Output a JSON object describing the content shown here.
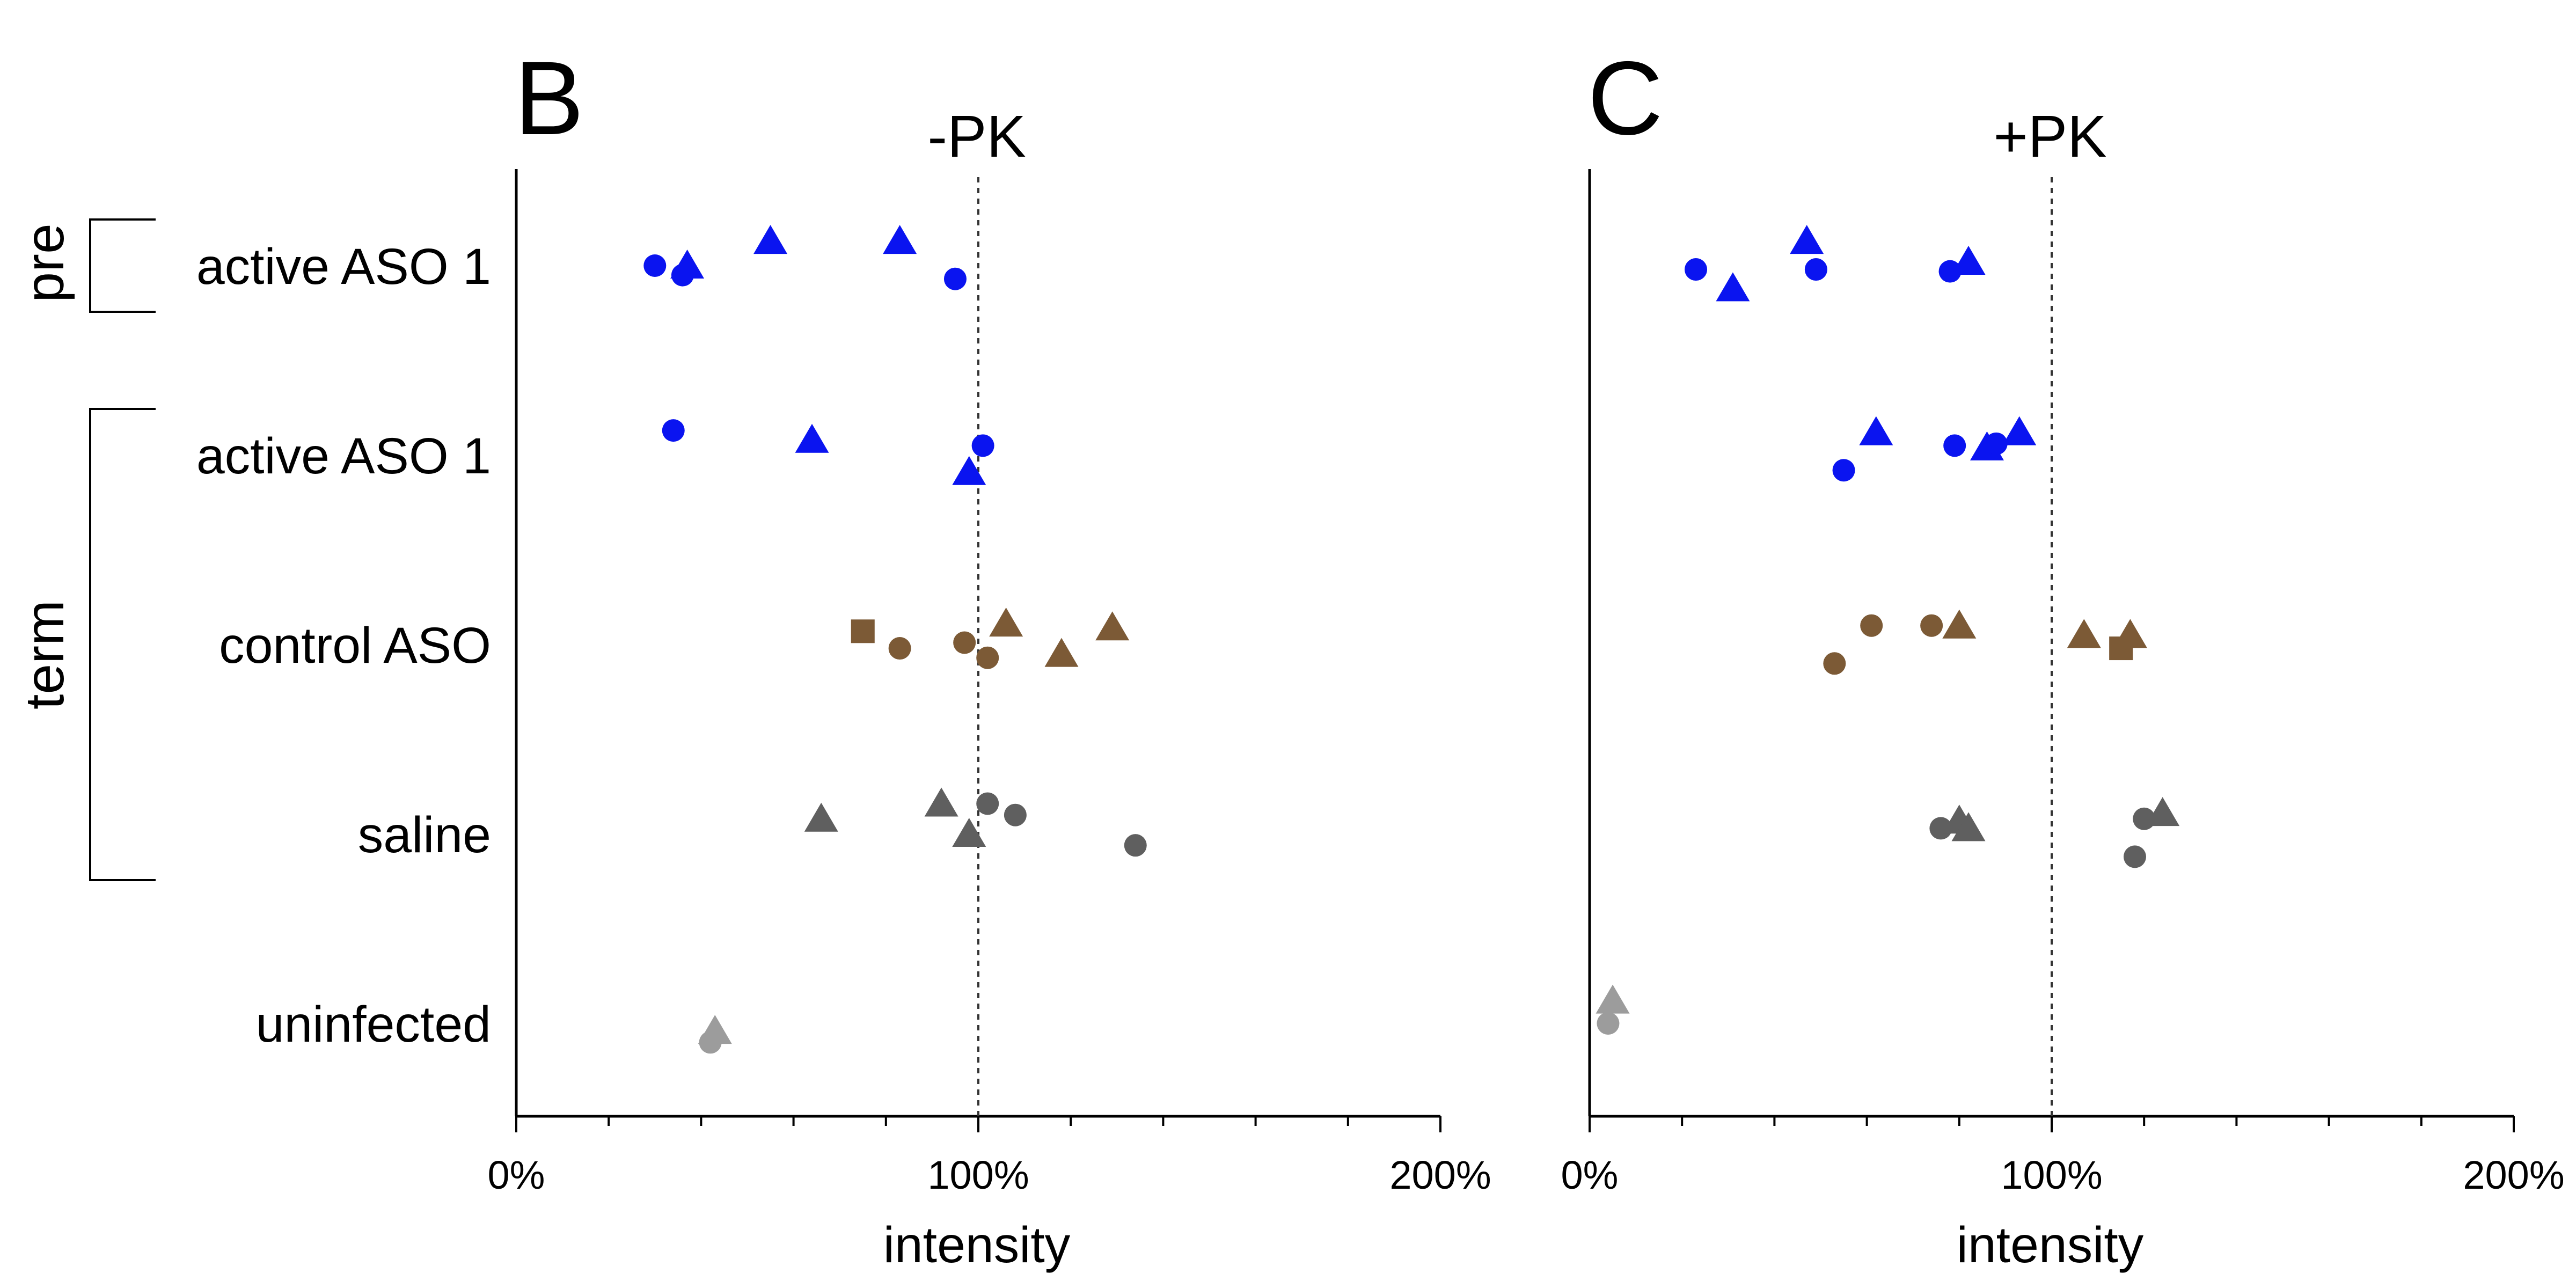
{
  "groups": [
    {
      "label": "pre",
      "from": 0,
      "to": 0
    },
    {
      "label": "term",
      "from": 1,
      "to": 3
    }
  ],
  "categories": [
    "active ASO 1",
    "active ASO 1",
    "control ASO",
    "saline",
    "uninfected"
  ],
  "colors": {
    "active": "#0a14f0",
    "control": "#7c5a36",
    "saline": "#5f5f5f",
    "uninfected": "#9c9c9c",
    "reference_line": "#333333"
  },
  "chart_data": [
    {
      "type": "scatter",
      "panel": "B",
      "title": "-PK",
      "xlabel": "intensity",
      "xlim": [
        0,
        200
      ],
      "x_tick_labels": [
        "0%",
        "100%",
        "200%"
      ],
      "x_ticks": [
        0,
        100,
        200
      ],
      "minor_tick_step": 20,
      "reference_x": 100,
      "points": [
        {
          "category": 0,
          "x": 30,
          "y_offset": 0.0,
          "shape": "circle",
          "color": "active"
        },
        {
          "category": 0,
          "x": 36,
          "y_offset": 0.05,
          "shape": "circle",
          "color": "active"
        },
        {
          "category": 0,
          "x": 37,
          "y_offset": 0.0,
          "shape": "triangle",
          "color": "active"
        },
        {
          "category": 0,
          "x": 55,
          "y_offset": -0.13,
          "shape": "triangle",
          "color": "active"
        },
        {
          "category": 0,
          "x": 83,
          "y_offset": -0.13,
          "shape": "triangle",
          "color": "active"
        },
        {
          "category": 0,
          "x": 95,
          "y_offset": 0.07,
          "shape": "circle",
          "color": "active"
        },
        {
          "category": 1,
          "x": 34,
          "y_offset": -0.13,
          "shape": "circle",
          "color": "active"
        },
        {
          "category": 1,
          "x": 64,
          "y_offset": -0.08,
          "shape": "triangle",
          "color": "active"
        },
        {
          "category": 1,
          "x": 98,
          "y_offset": 0.09,
          "shape": "triangle",
          "color": "active"
        },
        {
          "category": 1,
          "x": 101,
          "y_offset": -0.05,
          "shape": "circle",
          "color": "active"
        },
        {
          "category": 2,
          "x": 75,
          "y_offset": -0.07,
          "shape": "square",
          "color": "control"
        },
        {
          "category": 2,
          "x": 83,
          "y_offset": 0.02,
          "shape": "circle",
          "color": "control"
        },
        {
          "category": 2,
          "x": 97,
          "y_offset": -0.01,
          "shape": "circle",
          "color": "control"
        },
        {
          "category": 2,
          "x": 102,
          "y_offset": 0.07,
          "shape": "circle",
          "color": "control"
        },
        {
          "category": 2,
          "x": 106,
          "y_offset": -0.11,
          "shape": "triangle",
          "color": "control"
        },
        {
          "category": 2,
          "x": 118,
          "y_offset": 0.05,
          "shape": "triangle",
          "color": "control"
        },
        {
          "category": 2,
          "x": 129,
          "y_offset": -0.09,
          "shape": "triangle",
          "color": "control"
        },
        {
          "category": 3,
          "x": 66,
          "y_offset": -0.08,
          "shape": "triangle",
          "color": "saline"
        },
        {
          "category": 3,
          "x": 92,
          "y_offset": -0.16,
          "shape": "triangle",
          "color": "saline"
        },
        {
          "category": 3,
          "x": 98,
          "y_offset": 0.0,
          "shape": "triangle",
          "color": "saline"
        },
        {
          "category": 3,
          "x": 102,
          "y_offset": -0.16,
          "shape": "circle",
          "color": "saline"
        },
        {
          "category": 3,
          "x": 108,
          "y_offset": -0.1,
          "shape": "circle",
          "color": "saline"
        },
        {
          "category": 3,
          "x": 134,
          "y_offset": 0.06,
          "shape": "circle",
          "color": "saline"
        },
        {
          "category": 4,
          "x": 42,
          "y_offset": 0.1,
          "shape": "circle",
          "color": "uninfected"
        },
        {
          "category": 4,
          "x": 43,
          "y_offset": 0.04,
          "shape": "triangle",
          "color": "uninfected"
        }
      ]
    },
    {
      "type": "scatter",
      "panel": "C",
      "title": "+PK",
      "xlabel": "intensity",
      "xlim": [
        0,
        200
      ],
      "x_tick_labels": [
        "0%",
        "100%",
        "200%"
      ],
      "x_ticks": [
        0,
        100,
        200
      ],
      "minor_tick_step": 20,
      "reference_x": 100,
      "points": [
        {
          "category": 0,
          "x": 23,
          "y_offset": 0.02,
          "shape": "circle",
          "color": "active"
        },
        {
          "category": 0,
          "x": 31,
          "y_offset": 0.12,
          "shape": "triangle",
          "color": "active"
        },
        {
          "category": 0,
          "x": 47,
          "y_offset": -0.13,
          "shape": "triangle",
          "color": "active"
        },
        {
          "category": 0,
          "x": 49,
          "y_offset": 0.02,
          "shape": "circle",
          "color": "active"
        },
        {
          "category": 0,
          "x": 78,
          "y_offset": 0.03,
          "shape": "circle",
          "color": "active"
        },
        {
          "category": 0,
          "x": 82,
          "y_offset": -0.02,
          "shape": "triangle",
          "color": "active"
        },
        {
          "category": 1,
          "x": 55,
          "y_offset": 0.08,
          "shape": "circle",
          "color": "active"
        },
        {
          "category": 1,
          "x": 62,
          "y_offset": -0.12,
          "shape": "triangle",
          "color": "active"
        },
        {
          "category": 1,
          "x": 79,
          "y_offset": -0.05,
          "shape": "circle",
          "color": "active"
        },
        {
          "category": 1,
          "x": 86,
          "y_offset": -0.04,
          "shape": "triangle",
          "color": "active"
        },
        {
          "category": 1,
          "x": 88,
          "y_offset": -0.06,
          "shape": "circle",
          "color": "active"
        },
        {
          "category": 1,
          "x": 93,
          "y_offset": -0.12,
          "shape": "triangle",
          "color": "active"
        },
        {
          "category": 2,
          "x": 53,
          "y_offset": 0.1,
          "shape": "circle",
          "color": "control"
        },
        {
          "category": 2,
          "x": 61,
          "y_offset": -0.1,
          "shape": "circle",
          "color": "control"
        },
        {
          "category": 2,
          "x": 74,
          "y_offset": -0.1,
          "shape": "circle",
          "color": "control"
        },
        {
          "category": 2,
          "x": 80,
          "y_offset": -0.1,
          "shape": "triangle",
          "color": "control"
        },
        {
          "category": 2,
          "x": 107,
          "y_offset": -0.05,
          "shape": "triangle",
          "color": "control"
        },
        {
          "category": 2,
          "x": 115,
          "y_offset": 0.02,
          "shape": "square",
          "color": "control"
        },
        {
          "category": 2,
          "x": 117,
          "y_offset": -0.05,
          "shape": "triangle",
          "color": "control"
        },
        {
          "category": 3,
          "x": 76,
          "y_offset": -0.03,
          "shape": "circle",
          "color": "saline"
        },
        {
          "category": 3,
          "x": 80,
          "y_offset": -0.07,
          "shape": "triangle",
          "color": "saline"
        },
        {
          "category": 3,
          "x": 82,
          "y_offset": -0.03,
          "shape": "triangle",
          "color": "saline"
        },
        {
          "category": 3,
          "x": 118,
          "y_offset": 0.12,
          "shape": "circle",
          "color": "saline"
        },
        {
          "category": 3,
          "x": 120,
          "y_offset": -0.08,
          "shape": "circle",
          "color": "saline"
        },
        {
          "category": 3,
          "x": 124,
          "y_offset": -0.11,
          "shape": "triangle",
          "color": "saline"
        },
        {
          "category": 4,
          "x": 4,
          "y_offset": 0.0,
          "shape": "circle",
          "color": "uninfected"
        },
        {
          "category": 4,
          "x": 5,
          "y_offset": -0.12,
          "shape": "triangle",
          "color": "uninfected"
        }
      ]
    }
  ]
}
